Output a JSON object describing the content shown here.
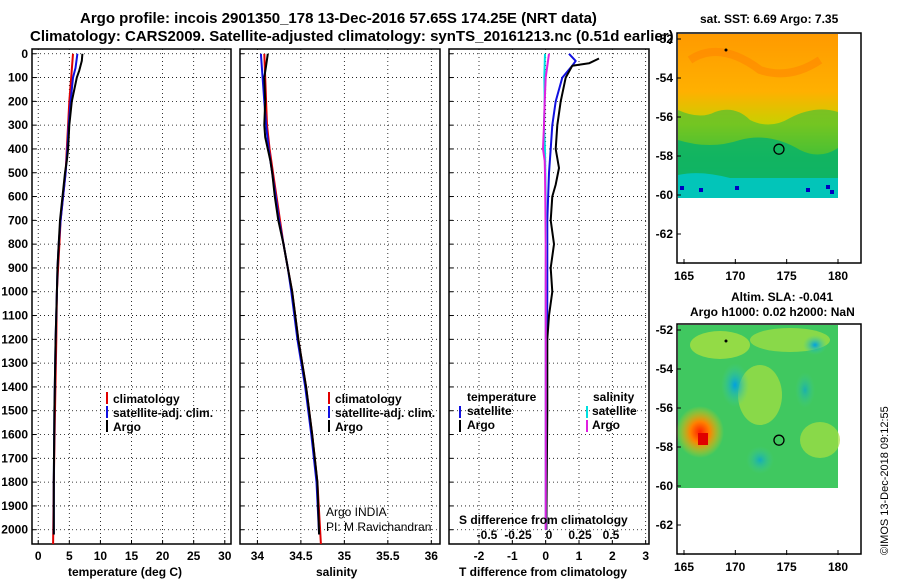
{
  "header": {
    "title_line1": "Argo profile: incois 2901350_178 13-Dec-2016 57.65S 174.25E (NRT data)",
    "title_line2": "Climatology: CARS2009. Satellite-adjusted climatology: synTS_20161213.nc (0.51d earlier)"
  },
  "depth_ticks": [
    0,
    100,
    200,
    300,
    400,
    500,
    600,
    700,
    800,
    900,
    1000,
    1100,
    1200,
    1300,
    1400,
    1500,
    1600,
    1700,
    1800,
    1900,
    2000
  ],
  "colors": {
    "climatology": "#e00000",
    "satellite": "#1010e0",
    "argo": "#000000",
    "sal_satellite": "#00e0e0",
    "sal_argo": "#e020e0"
  },
  "chart_data": [
    {
      "type": "line",
      "id": "temperature",
      "xlabel": "temperature (deg C)",
      "xlim": [
        -1,
        31
      ],
      "ylim": [
        2060,
        -20
      ],
      "xticks": [
        0,
        5,
        10,
        15,
        20,
        25,
        30
      ],
      "legend": [
        "climatology",
        "satellite-adj. clim.",
        "Argo"
      ],
      "series": [
        {
          "name": "climatology",
          "color_key": "climatology",
          "points": [
            [
              5.6,
              0
            ],
            [
              5.3,
              100
            ],
            [
              5.0,
              200
            ],
            [
              4.8,
              300
            ],
            [
              4.6,
              400
            ],
            [
              4.4,
              500
            ],
            [
              4.0,
              600
            ],
            [
              3.6,
              700
            ],
            [
              3.4,
              800
            ],
            [
              3.2,
              900
            ],
            [
              3.0,
              1000
            ],
            [
              2.9,
              1200
            ],
            [
              2.7,
              1500
            ],
            [
              2.5,
              1800
            ],
            [
              2.4,
              2060
            ]
          ]
        },
        {
          "name": "satellite-adj. clim.",
          "color_key": "satellite",
          "points": [
            [
              6.3,
              0
            ],
            [
              6.0,
              60
            ],
            [
              5.6,
              100
            ],
            [
              5.2,
              200
            ],
            [
              4.9,
              300
            ],
            [
              4.7,
              400
            ],
            [
              4.4,
              500
            ],
            [
              4.0,
              600
            ],
            [
              3.6,
              700
            ],
            [
              3.3,
              800
            ],
            [
              3.1,
              900
            ],
            [
              3.0,
              1000
            ],
            [
              2.8,
              1200
            ],
            [
              2.6,
              1500
            ],
            [
              2.5,
              1800
            ],
            [
              2.5,
              2020
            ]
          ]
        },
        {
          "name": "Argo",
          "color_key": "argo",
          "points": [
            [
              7.1,
              0
            ],
            [
              7.0,
              30
            ],
            [
              6.6,
              70
            ],
            [
              6.2,
              100
            ],
            [
              5.8,
              150
            ],
            [
              5.4,
              200
            ],
            [
              5.0,
              300
            ],
            [
              4.8,
              400
            ],
            [
              4.6,
              450
            ],
            [
              4.3,
              500
            ],
            [
              3.9,
              600
            ],
            [
              3.5,
              700
            ],
            [
              3.3,
              800
            ],
            [
              3.1,
              900
            ],
            [
              3.0,
              1000
            ],
            [
              2.8,
              1200
            ],
            [
              2.6,
              1500
            ],
            [
              2.5,
              1800
            ],
            [
              2.5,
              2020
            ]
          ]
        }
      ]
    },
    {
      "type": "line",
      "id": "salinity",
      "xlabel": "salinity",
      "xlim": [
        33.8,
        36.1
      ],
      "ylim": [
        2060,
        -20
      ],
      "xticks": [
        34,
        34.5,
        35,
        35.5,
        36
      ],
      "tick_labels": [
        "34",
        "34.5",
        "35",
        "35.5",
        "36"
      ],
      "legend": [
        "climatology",
        "satellite-adj. clim.",
        "Argo"
      ],
      "annotation_line1": "Argo INDIA",
      "annotation_line2": "PI: M Ravichandran",
      "series": [
        {
          "name": "climatology",
          "color_key": "climatology",
          "points": [
            [
              34.08,
              0
            ],
            [
              34.09,
              100
            ],
            [
              34.1,
              200
            ],
            [
              34.11,
              300
            ],
            [
              34.14,
              400
            ],
            [
              34.18,
              500
            ],
            [
              34.22,
              600
            ],
            [
              34.26,
              700
            ],
            [
              34.3,
              800
            ],
            [
              34.35,
              900
            ],
            [
              34.4,
              1000
            ],
            [
              34.47,
              1200
            ],
            [
              34.56,
              1400
            ],
            [
              34.63,
              1600
            ],
            [
              34.69,
              1800
            ],
            [
              34.73,
              2060
            ]
          ]
        },
        {
          "name": "satellite-adj. clim.",
          "color_key": "satellite",
          "points": [
            [
              34.04,
              0
            ],
            [
              34.06,
              100
            ],
            [
              34.08,
              200
            ],
            [
              34.1,
              300
            ],
            [
              34.13,
              400
            ],
            [
              34.17,
              500
            ],
            [
              34.21,
              600
            ],
            [
              34.25,
              700
            ],
            [
              34.3,
              800
            ],
            [
              34.35,
              900
            ],
            [
              34.39,
              1000
            ],
            [
              34.46,
              1200
            ],
            [
              34.55,
              1400
            ],
            [
              34.62,
              1600
            ],
            [
              34.68,
              1800
            ],
            [
              34.71,
              2020
            ]
          ]
        },
        {
          "name": "Argo",
          "color_key": "argo",
          "points": [
            [
              34.12,
              0
            ],
            [
              34.1,
              50
            ],
            [
              34.08,
              100
            ],
            [
              34.09,
              200
            ],
            [
              34.08,
              300
            ],
            [
              34.09,
              350
            ],
            [
              34.12,
              400
            ],
            [
              34.15,
              450
            ],
            [
              34.17,
              500
            ],
            [
              34.2,
              600
            ],
            [
              34.24,
              700
            ],
            [
              34.3,
              800
            ],
            [
              34.35,
              900
            ],
            [
              34.4,
              1000
            ],
            [
              34.47,
              1200
            ],
            [
              34.56,
              1400
            ],
            [
              34.63,
              1600
            ],
            [
              34.69,
              1800
            ],
            [
              34.71,
              2020
            ]
          ]
        }
      ]
    },
    {
      "type": "line",
      "id": "difference",
      "xlabel": "T difference from climatology",
      "xlim": [
        -2.9,
        3.1
      ],
      "ylim": [
        2060,
        -20
      ],
      "xticks": [
        -2,
        -1,
        0,
        1,
        2,
        3
      ],
      "sal_axis_label": "S difference from climatology",
      "sal_ticks": [
        -0.5,
        -0.25,
        0,
        0.25,
        0.5
      ],
      "sal_tick_labels": [
        "-0.5",
        "-0.25",
        "0",
        "0.25",
        "0.5"
      ],
      "legend_temperature_title": "temperature",
      "legend_salinity_title": "salinity",
      "legend_temperature": [
        "satellite",
        "Argo"
      ],
      "legend_salinity": [
        "satellite",
        "Argo"
      ],
      "series": [
        {
          "name": "temperature satellite",
          "color_key": "satellite",
          "points": [
            [
              0.7,
              0
            ],
            [
              0.9,
              30
            ],
            [
              0.8,
              50
            ],
            [
              0.5,
              100
            ],
            [
              0.3,
              200
            ],
            [
              0.2,
              300
            ],
            [
              0.15,
              400
            ],
            [
              0.1,
              500
            ],
            [
              0.05,
              700
            ],
            [
              0.05,
              1000
            ],
            [
              0.03,
              1500
            ],
            [
              0.02,
              2000
            ]
          ]
        },
        {
          "name": "temperature Argo",
          "color_key": "argo",
          "points": [
            [
              1.6,
              20
            ],
            [
              1.3,
              40
            ],
            [
              0.8,
              50
            ],
            [
              0.6,
              100
            ],
            [
              0.45,
              200
            ],
            [
              0.35,
              300
            ],
            [
              0.3,
              400
            ],
            [
              0.4,
              480
            ],
            [
              0.3,
              550
            ],
            [
              0.2,
              600
            ],
            [
              0.15,
              700
            ],
            [
              0.25,
              800
            ],
            [
              0.15,
              900
            ],
            [
              0.2,
              1000
            ],
            [
              0.1,
              1100
            ],
            [
              0.05,
              1200
            ],
            [
              0.05,
              1500
            ],
            [
              0.02,
              2000
            ]
          ]
        },
        {
          "name": "salinity satellite",
          "color_key": "sal_satellite",
          "points": [
            [
              -0.02,
              0
            ],
            [
              -0.04,
              100
            ],
            [
              -0.03,
              200
            ],
            [
              -0.05,
              300
            ],
            [
              -0.02,
              400
            ],
            [
              0.0,
              600
            ],
            [
              0.01,
              800
            ],
            [
              0.0,
              1000
            ],
            [
              0.0,
              1500
            ],
            [
              0.0,
              2000
            ]
          ]
        },
        {
          "name": "salinity Argo",
          "color_key": "sal_argo",
          "points": [
            [
              0.1,
              0
            ],
            [
              0.0,
              100
            ],
            [
              -0.03,
              200
            ],
            [
              -0.05,
              300
            ],
            [
              -0.08,
              400
            ],
            [
              -0.03,
              450
            ],
            [
              -0.02,
              500
            ],
            [
              -0.01,
              600
            ],
            [
              0.0,
              800
            ],
            [
              0.0,
              1000
            ],
            [
              0.0,
              1500
            ],
            [
              0.0,
              2000
            ]
          ]
        }
      ]
    }
  ],
  "maps": {
    "sst": {
      "title": "sat. SST: 6.69 Argo: 7.35"
    },
    "sla": {
      "title_line1": "Altim. SLA: -0.041",
      "title_line2": "Argo h1000: 0.02 h2000: NaN"
    },
    "lon_ticks": [
      165,
      170,
      175,
      180
    ],
    "lat_ticks": [
      -52,
      -54,
      -56,
      -58,
      -60,
      -62
    ],
    "float_position": {
      "lon": 174.25,
      "lat": -57.65
    }
  },
  "watermark": "©IMOS 13-Dec-2018 09:12:55"
}
